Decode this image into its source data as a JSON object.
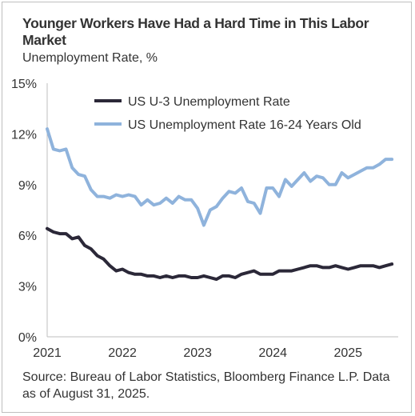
{
  "header": {
    "title": "Younger Workers Have Had a Hard Time in This Labor Market",
    "subtitle": "Unemployment Rate, %"
  },
  "footer": {
    "source": "Source: Bureau of Labor Statistics, Bloomberg Finance L.P. Data as of August 31, 2025."
  },
  "colors": {
    "u3": "#2b2838",
    "youth": "#8fb3dc",
    "axis": "#bfbfbf",
    "text": "#333333"
  },
  "chart_data": {
    "type": "line",
    "title": "Younger Workers Have Had a Hard Time in This Labor Market",
    "ylabel": "Unemployment Rate, %",
    "xlabel": "",
    "xlim": [
      2021,
      2025.667
    ],
    "ylim": [
      0,
      15
    ],
    "y_ticks": [
      "0%",
      "3%",
      "6%",
      "9%",
      "12%",
      "15%"
    ],
    "y_tick_values": [
      0,
      3,
      6,
      9,
      12,
      15
    ],
    "x_ticks": [
      "2021",
      "2022",
      "2023",
      "2024",
      "2025"
    ],
    "x_tick_values": [
      2021,
      2022,
      2023,
      2024,
      2025
    ],
    "grid": false,
    "legend_position": "top",
    "series": [
      {
        "name": "US U-3 Unemployment Rate",
        "color": "#2b2838",
        "x": [
          2021.0,
          2021.083,
          2021.167,
          2021.25,
          2021.333,
          2021.417,
          2021.5,
          2021.583,
          2021.667,
          2021.75,
          2021.833,
          2021.917,
          2022.0,
          2022.083,
          2022.167,
          2022.25,
          2022.333,
          2022.417,
          2022.5,
          2022.583,
          2022.667,
          2022.75,
          2022.833,
          2022.917,
          2023.0,
          2023.083,
          2023.167,
          2023.25,
          2023.333,
          2023.417,
          2023.5,
          2023.583,
          2023.667,
          2023.75,
          2023.833,
          2023.917,
          2024.0,
          2024.083,
          2024.167,
          2024.25,
          2024.333,
          2024.417,
          2024.5,
          2024.583,
          2024.667,
          2024.75,
          2024.833,
          2024.917,
          2025.0,
          2025.083,
          2025.167,
          2025.25,
          2025.333,
          2025.417,
          2025.5,
          2025.583
        ],
        "values": [
          6.4,
          6.2,
          6.1,
          6.1,
          5.8,
          5.9,
          5.4,
          5.2,
          4.8,
          4.6,
          4.2,
          3.9,
          4.0,
          3.8,
          3.7,
          3.7,
          3.6,
          3.6,
          3.5,
          3.6,
          3.5,
          3.6,
          3.6,
          3.5,
          3.5,
          3.6,
          3.5,
          3.4,
          3.6,
          3.6,
          3.5,
          3.7,
          3.8,
          3.9,
          3.7,
          3.7,
          3.7,
          3.9,
          3.9,
          3.9,
          4.0,
          4.1,
          4.2,
          4.2,
          4.1,
          4.1,
          4.2,
          4.1,
          4.0,
          4.1,
          4.2,
          4.2,
          4.2,
          4.1,
          4.2,
          4.3
        ]
      },
      {
        "name": "US Unemployment Rate 16-24 Years Old",
        "color": "#8fb3dc",
        "x": [
          2021.0,
          2021.083,
          2021.167,
          2021.25,
          2021.333,
          2021.417,
          2021.5,
          2021.583,
          2021.667,
          2021.75,
          2021.833,
          2021.917,
          2022.0,
          2022.083,
          2022.167,
          2022.25,
          2022.333,
          2022.417,
          2022.5,
          2022.583,
          2022.667,
          2022.75,
          2022.833,
          2022.917,
          2023.0,
          2023.083,
          2023.167,
          2023.25,
          2023.333,
          2023.417,
          2023.5,
          2023.583,
          2023.667,
          2023.75,
          2023.833,
          2023.917,
          2024.0,
          2024.083,
          2024.167,
          2024.25,
          2024.333,
          2024.417,
          2024.5,
          2024.583,
          2024.667,
          2024.75,
          2024.833,
          2024.917,
          2025.0,
          2025.083,
          2025.167,
          2025.25,
          2025.333,
          2025.417,
          2025.5,
          2025.583
        ],
        "values": [
          12.3,
          11.1,
          11.0,
          11.1,
          10.0,
          9.6,
          9.5,
          8.7,
          8.3,
          8.3,
          8.2,
          8.4,
          8.3,
          8.4,
          8.3,
          7.8,
          8.1,
          7.8,
          7.9,
          8.2,
          7.9,
          8.3,
          8.1,
          8.1,
          7.6,
          6.6,
          7.5,
          7.7,
          8.2,
          8.6,
          8.5,
          8.8,
          8.0,
          7.9,
          7.3,
          8.8,
          8.8,
          8.3,
          9.3,
          8.9,
          9.3,
          9.7,
          9.2,
          9.5,
          9.4,
          9.0,
          9.0,
          9.7,
          9.4,
          9.6,
          9.8,
          10.0,
          10.0,
          10.2,
          10.5,
          10.5
        ]
      }
    ]
  }
}
